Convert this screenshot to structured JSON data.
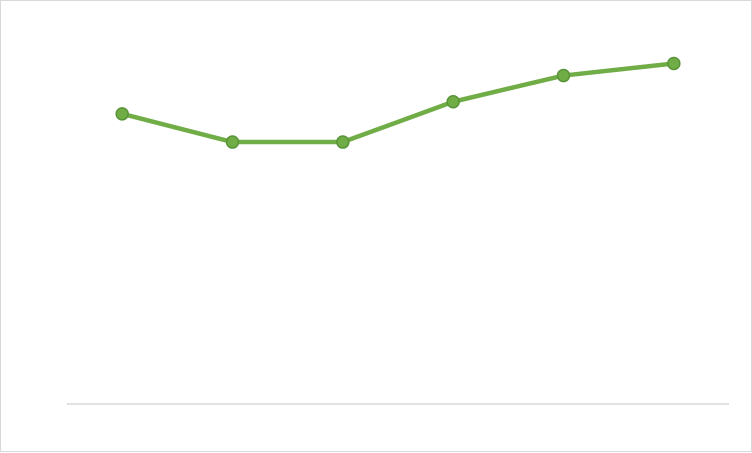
{
  "chart_data": {
    "type": "line",
    "title": "",
    "xlabel": "",
    "ylabel": "",
    "categories": [
      "",
      "",
      "",
      "",
      "",
      ""
    ],
    "series": [
      {
        "values": [
          72,
          65,
          65,
          75,
          81.5,
          84.5
        ]
      }
    ],
    "ylim": [
      0,
      100
    ],
    "grid": false,
    "legend": "none",
    "markers": true,
    "colors": {
      "line": "#70ad47",
      "marker_fill": "#70ad47",
      "marker_stroke": "#5a9438",
      "axis": "#d9d9d9"
    }
  }
}
